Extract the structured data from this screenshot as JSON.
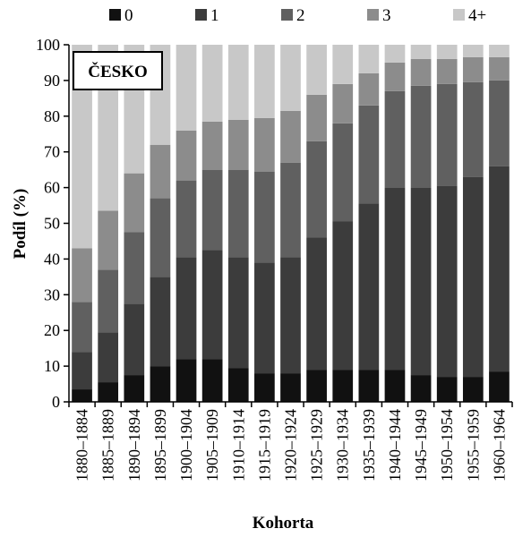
{
  "chart_data": {
    "type": "bar",
    "stacked": true,
    "panel_label": "ČESKO",
    "xlabel": "Kohorta",
    "ylabel": "Podíl (%)",
    "ylim": [
      0,
      100
    ],
    "yticks": [
      0,
      10,
      20,
      30,
      40,
      50,
      60,
      70,
      80,
      90,
      100
    ],
    "legend_position": "top",
    "categories": [
      "1880–1884",
      "1885–1889",
      "1890–1894",
      "1895–1899",
      "1900–1904",
      "1905–1909",
      "1910–1914",
      "1915–1919",
      "1920–1924",
      "1925–1929",
      "1930–1934",
      "1935–1939",
      "1940–1944",
      "1945–1949",
      "1950–1954",
      "1955–1959",
      "1960–1964"
    ],
    "series": [
      {
        "name": "0",
        "color": "#111111",
        "values": [
          3.5,
          5.5,
          7.5,
          10,
          12,
          12,
          9.5,
          8,
          8,
          9,
          9,
          9,
          9,
          7.5,
          7,
          7,
          8.5
        ]
      },
      {
        "name": "1",
        "color": "#3c3c3c",
        "values": [
          10.5,
          14,
          20,
          25,
          28.5,
          30.5,
          31,
          31,
          32.5,
          37,
          41.5,
          46.5,
          51,
          52.5,
          53.5,
          56,
          57.5
        ]
      },
      {
        "name": "2",
        "color": "#606060",
        "values": [
          14,
          17.5,
          20,
          22,
          21.5,
          22.5,
          24.5,
          25.5,
          26.5,
          27,
          27.5,
          27.5,
          27,
          28.5,
          28.5,
          26.5,
          24
        ]
      },
      {
        "name": "3",
        "color": "#8c8c8c",
        "values": [
          15,
          16.5,
          16.5,
          15,
          14,
          13.5,
          14,
          15,
          14.5,
          13,
          11,
          9,
          8,
          7.5,
          7,
          7,
          6.5
        ]
      },
      {
        "name": "4+",
        "color": "#c8c8c8",
        "values": [
          57,
          46.5,
          36,
          28,
          24,
          21.5,
          21,
          20.5,
          18.5,
          14,
          11,
          8,
          5,
          4,
          4,
          3.5,
          3.5
        ]
      }
    ]
  }
}
